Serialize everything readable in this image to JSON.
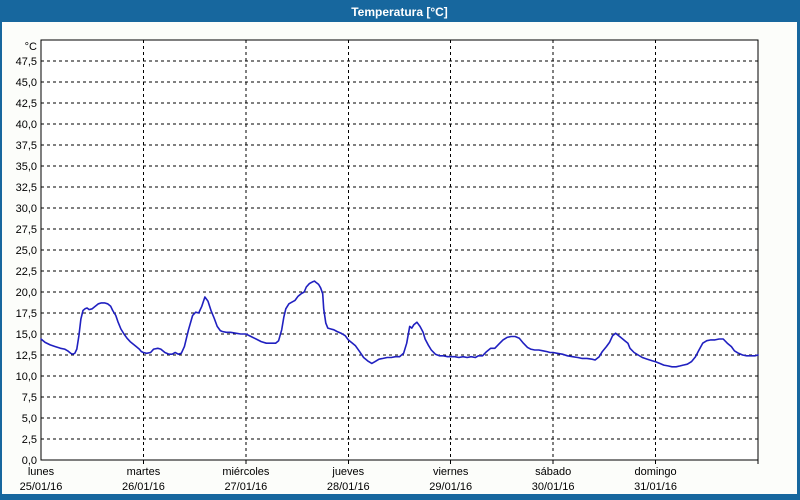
{
  "window": {
    "title": "Temperatura [°C]"
  },
  "theme": {
    "titlebar_bg": "#17679E",
    "frame_border": "#17679E",
    "content_bg": "#FCFDFA",
    "plot_bg": "#FFFFFF",
    "grid_color": "#000000",
    "text_color": "#000000",
    "line_color": "#2020C0"
  },
  "chart_data": {
    "type": "line",
    "title": "Temperatura [°C]",
    "grid": "dashed",
    "legend_position": "none",
    "y_axis": {
      "unit_label": "°C",
      "min": 0,
      "max": 47.5,
      "plot_headroom_max": 50,
      "tick_step": 2.5,
      "tick_labels": [
        "0,0",
        "2,5",
        "5,0",
        "7,5",
        "10,0",
        "12,5",
        "15,0",
        "17,5",
        "20,0",
        "22,5",
        "25,0",
        "27,5",
        "30,0",
        "32,5",
        "35,0",
        "37,5",
        "40,0",
        "42,5",
        "45,0",
        "47,5"
      ]
    },
    "x_axis": {
      "unit": "days since lunes 25/01/16 00:00",
      "range_days": [
        0,
        7
      ],
      "days": [
        {
          "name": "lunes",
          "date": "25/01/16"
        },
        {
          "name": "martes",
          "date": "26/01/16"
        },
        {
          "name": "miércoles",
          "date": "27/01/16"
        },
        {
          "name": "jueves",
          "date": "28/01/16"
        },
        {
          "name": "viernes",
          "date": "29/01/16"
        },
        {
          "name": "sábado",
          "date": "30/01/16"
        },
        {
          "name": "domingo",
          "date": "31/01/16"
        }
      ]
    },
    "series": [
      {
        "name": "Temperatura",
        "color": "#2020C0",
        "points": [
          [
            0.0,
            14.4
          ],
          [
            0.04,
            14.0
          ],
          [
            0.09,
            13.7
          ],
          [
            0.14,
            13.5
          ],
          [
            0.19,
            13.3
          ],
          [
            0.23,
            13.2
          ],
          [
            0.26,
            13.0
          ],
          [
            0.29,
            12.7
          ],
          [
            0.31,
            12.6
          ],
          [
            0.33,
            12.7
          ],
          [
            0.35,
            13.2
          ],
          [
            0.37,
            14.8
          ],
          [
            0.39,
            16.8
          ],
          [
            0.41,
            17.8
          ],
          [
            0.43,
            18.0
          ],
          [
            0.45,
            18.1
          ],
          [
            0.47,
            17.9
          ],
          [
            0.5,
            18.0
          ],
          [
            0.53,
            18.3
          ],
          [
            0.56,
            18.6
          ],
          [
            0.59,
            18.7
          ],
          [
            0.62,
            18.7
          ],
          [
            0.65,
            18.6
          ],
          [
            0.68,
            18.3
          ],
          [
            0.7,
            17.8
          ],
          [
            0.73,
            17.2
          ],
          [
            0.75,
            16.5
          ],
          [
            0.78,
            15.6
          ],
          [
            0.81,
            15.0
          ],
          [
            0.84,
            14.5
          ],
          [
            0.87,
            14.1
          ],
          [
            0.9,
            13.8
          ],
          [
            0.93,
            13.5
          ],
          [
            0.96,
            13.2
          ],
          [
            0.98,
            12.9
          ],
          [
            1.0,
            12.8
          ],
          [
            1.03,
            12.7
          ],
          [
            1.07,
            12.8
          ],
          [
            1.1,
            13.2
          ],
          [
            1.14,
            13.3
          ],
          [
            1.17,
            13.2
          ],
          [
            1.21,
            12.8
          ],
          [
            1.25,
            12.6
          ],
          [
            1.28,
            12.6
          ],
          [
            1.31,
            12.8
          ],
          [
            1.34,
            12.6
          ],
          [
            1.37,
            12.7
          ],
          [
            1.4,
            13.5
          ],
          [
            1.44,
            15.5
          ],
          [
            1.48,
            17.2
          ],
          [
            1.51,
            17.6
          ],
          [
            1.54,
            17.5
          ],
          [
            1.57,
            18.3
          ],
          [
            1.6,
            19.4
          ],
          [
            1.63,
            18.9
          ],
          [
            1.66,
            17.8
          ],
          [
            1.69,
            16.9
          ],
          [
            1.72,
            15.9
          ],
          [
            1.75,
            15.4
          ],
          [
            1.77,
            15.3
          ],
          [
            1.81,
            15.2
          ],
          [
            1.85,
            15.2
          ],
          [
            1.9,
            15.1
          ],
          [
            1.95,
            15.0
          ],
          [
            2.0,
            15.0
          ],
          [
            2.05,
            14.7
          ],
          [
            2.1,
            14.4
          ],
          [
            2.15,
            14.1
          ],
          [
            2.2,
            13.9
          ],
          [
            2.25,
            13.9
          ],
          [
            2.29,
            13.9
          ],
          [
            2.32,
            14.2
          ],
          [
            2.35,
            15.5
          ],
          [
            2.37,
            17.0
          ],
          [
            2.39,
            18.0
          ],
          [
            2.42,
            18.6
          ],
          [
            2.45,
            18.8
          ],
          [
            2.48,
            19.0
          ],
          [
            2.51,
            19.5
          ],
          [
            2.54,
            19.8
          ],
          [
            2.57,
            20.0
          ],
          [
            2.59,
            20.6
          ],
          [
            2.62,
            21.0
          ],
          [
            2.65,
            21.2
          ],
          [
            2.67,
            21.3
          ],
          [
            2.69,
            21.1
          ],
          [
            2.71,
            20.9
          ],
          [
            2.73,
            20.5
          ],
          [
            2.75,
            19.8
          ],
          [
            2.76,
            18.0
          ],
          [
            2.78,
            16.3
          ],
          [
            2.8,
            15.7
          ],
          [
            2.83,
            15.6
          ],
          [
            2.86,
            15.5
          ],
          [
            2.89,
            15.3
          ],
          [
            2.93,
            15.1
          ],
          [
            2.97,
            14.8
          ],
          [
            3.0,
            14.3
          ],
          [
            3.03,
            14.0
          ],
          [
            3.07,
            13.6
          ],
          [
            3.11,
            12.9
          ],
          [
            3.15,
            12.2
          ],
          [
            3.19,
            11.8
          ],
          [
            3.23,
            11.5
          ],
          [
            3.26,
            11.7
          ],
          [
            3.3,
            12.0
          ],
          [
            3.34,
            12.1
          ],
          [
            3.38,
            12.2
          ],
          [
            3.42,
            12.2
          ],
          [
            3.46,
            12.3
          ],
          [
            3.5,
            12.3
          ],
          [
            3.54,
            12.7
          ],
          [
            3.57,
            13.9
          ],
          [
            3.6,
            15.9
          ],
          [
            3.62,
            15.7
          ],
          [
            3.64,
            16.1
          ],
          [
            3.67,
            16.4
          ],
          [
            3.7,
            15.9
          ],
          [
            3.73,
            15.2
          ],
          [
            3.75,
            14.4
          ],
          [
            3.78,
            13.7
          ],
          [
            3.81,
            13.1
          ],
          [
            3.85,
            12.6
          ],
          [
            3.89,
            12.4
          ],
          [
            3.93,
            12.4
          ],
          [
            3.97,
            12.3
          ],
          [
            4.0,
            12.3
          ],
          [
            4.04,
            12.3
          ],
          [
            4.08,
            12.2
          ],
          [
            4.12,
            12.3
          ],
          [
            4.16,
            12.2
          ],
          [
            4.2,
            12.3
          ],
          [
            4.24,
            12.2
          ],
          [
            4.27,
            12.4
          ],
          [
            4.31,
            12.4
          ],
          [
            4.35,
            12.9
          ],
          [
            4.39,
            13.3
          ],
          [
            4.43,
            13.3
          ],
          [
            4.47,
            13.8
          ],
          [
            4.51,
            14.3
          ],
          [
            4.55,
            14.6
          ],
          [
            4.59,
            14.7
          ],
          [
            4.63,
            14.7
          ],
          [
            4.67,
            14.5
          ],
          [
            4.71,
            13.9
          ],
          [
            4.75,
            13.4
          ],
          [
            4.78,
            13.2
          ],
          [
            4.82,
            13.1
          ],
          [
            4.86,
            13.1
          ],
          [
            4.9,
            13.0
          ],
          [
            4.94,
            12.9
          ],
          [
            4.97,
            12.8
          ],
          [
            5.0,
            12.8
          ],
          [
            5.04,
            12.7
          ],
          [
            5.09,
            12.6
          ],
          [
            5.14,
            12.4
          ],
          [
            5.19,
            12.3
          ],
          [
            5.24,
            12.2
          ],
          [
            5.28,
            12.1
          ],
          [
            5.33,
            12.1
          ],
          [
            5.38,
            12.0
          ],
          [
            5.41,
            11.9
          ],
          [
            5.45,
            12.3
          ],
          [
            5.48,
            12.9
          ],
          [
            5.52,
            13.5
          ],
          [
            5.55,
            14.0
          ],
          [
            5.58,
            14.8
          ],
          [
            5.61,
            15.1
          ],
          [
            5.64,
            14.8
          ],
          [
            5.67,
            14.5
          ],
          [
            5.7,
            14.2
          ],
          [
            5.73,
            13.9
          ],
          [
            5.75,
            13.3
          ],
          [
            5.79,
            12.8
          ],
          [
            5.83,
            12.5
          ],
          [
            5.87,
            12.2
          ],
          [
            5.92,
            12.0
          ],
          [
            5.97,
            11.8
          ],
          [
            6.0,
            11.7
          ],
          [
            6.04,
            11.5
          ],
          [
            6.08,
            11.3
          ],
          [
            6.12,
            11.2
          ],
          [
            6.16,
            11.1
          ],
          [
            6.2,
            11.1
          ],
          [
            6.24,
            11.2
          ],
          [
            6.27,
            11.3
          ],
          [
            6.31,
            11.4
          ],
          [
            6.35,
            11.7
          ],
          [
            6.39,
            12.3
          ],
          [
            6.42,
            13.0
          ],
          [
            6.46,
            13.9
          ],
          [
            6.5,
            14.2
          ],
          [
            6.54,
            14.3
          ],
          [
            6.58,
            14.3
          ],
          [
            6.62,
            14.4
          ],
          [
            6.66,
            14.4
          ],
          [
            6.7,
            13.9
          ],
          [
            6.74,
            13.5
          ],
          [
            6.77,
            13.0
          ],
          [
            6.81,
            12.7
          ],
          [
            6.85,
            12.5
          ],
          [
            6.89,
            12.4
          ],
          [
            6.93,
            12.4
          ],
          [
            6.97,
            12.4
          ],
          [
            7.0,
            12.5
          ]
        ]
      }
    ]
  }
}
